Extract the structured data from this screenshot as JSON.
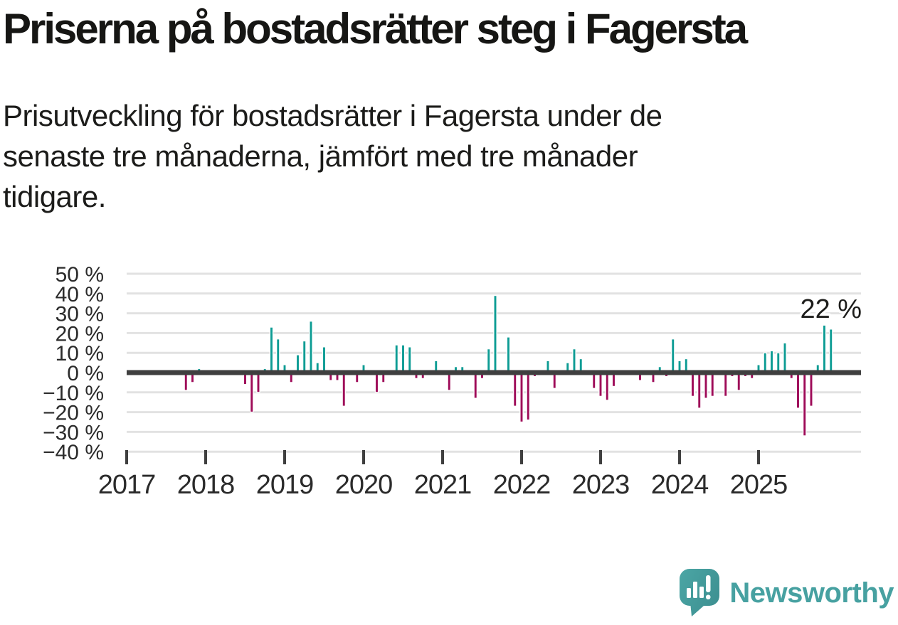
{
  "header": {
    "title": "Priserna på bostadsrätter steg i Fagersta",
    "subtitle_lines": [
      "Prisutveckling för bostadsrätter i Fagersta under de",
      "senaste tre månaderna, jämfört med tre månader",
      "tidigare."
    ]
  },
  "footer": {
    "brand": "Newsworthy",
    "logo_icon": "speech-bubble-with-bar-chart-and-exclamation"
  },
  "chart_data": {
    "type": "bar",
    "title": "",
    "xlabel": "",
    "ylabel": "",
    "unit": "%",
    "grid": true,
    "ylim": [
      -40,
      50
    ],
    "ytick_step": 10,
    "ytick_labels": [
      "50 %",
      "40 %",
      "30 %",
      "20 %",
      "10 %",
      "0 %",
      "−10 %",
      "−20 %",
      "−30 %",
      "−40 %"
    ],
    "year_labels": [
      "2017",
      "2018",
      "2019",
      "2020",
      "2021",
      "2022",
      "2023",
      "2024",
      "2025"
    ],
    "annotation": {
      "text": "22 %",
      "month": "2025-12"
    },
    "colors": {
      "positive": "#0d9c94",
      "negative": "#9e0b58",
      "zero_line": "#3f3f3f",
      "grid": "#e2e2e2",
      "text": "#2b2b2b",
      "annotation_text": "#1d1d1b",
      "brand_teal": "#47a1a1"
    },
    "months": [
      "2017-10",
      "2017-11",
      "2017-12",
      "2018-01",
      "2018-02",
      "2018-03",
      "2018-04",
      "2018-05",
      "2018-06",
      "2018-07",
      "2018-08",
      "2018-09",
      "2018-10",
      "2018-11",
      "2018-12",
      "2019-01",
      "2019-02",
      "2019-03",
      "2019-04",
      "2019-05",
      "2019-06",
      "2019-07",
      "2019-08",
      "2019-09",
      "2019-10",
      "2019-11",
      "2019-12",
      "2020-01",
      "2020-02",
      "2020-03",
      "2020-04",
      "2020-05",
      "2020-06",
      "2020-07",
      "2020-08",
      "2020-09",
      "2020-10",
      "2020-11",
      "2020-12",
      "2021-01",
      "2021-02",
      "2021-03",
      "2021-04",
      "2021-05",
      "2021-06",
      "2021-07",
      "2021-08",
      "2021-09",
      "2021-10",
      "2021-11",
      "2021-12",
      "2022-01",
      "2022-02",
      "2022-03",
      "2022-04",
      "2022-05",
      "2022-06",
      "2022-07",
      "2022-08",
      "2022-09",
      "2022-10",
      "2022-11",
      "2022-12",
      "2023-01",
      "2023-02",
      "2023-03",
      "2023-04",
      "2023-05",
      "2023-06",
      "2023-07",
      "2023-08",
      "2023-09",
      "2023-10",
      "2023-11",
      "2023-12",
      "2024-01",
      "2024-02",
      "2024-03",
      "2024-04",
      "2024-05",
      "2024-06",
      "2024-07",
      "2024-08",
      "2024-09",
      "2024-10",
      "2024-11",
      "2024-12",
      "2025-01",
      "2025-02",
      "2025-03",
      "2025-04",
      "2025-05",
      "2025-06",
      "2025-07",
      "2025-08",
      "2025-09",
      "2025-10",
      "2025-11",
      "2025-12"
    ],
    "values": [
      -9,
      -5,
      2,
      0,
      0,
      0,
      0,
      0,
      0,
      -6,
      -20,
      -10,
      2,
      23,
      17,
      4,
      -5,
      9,
      16,
      26,
      5,
      13,
      -4,
      -4,
      -17,
      -1,
      -5,
      4,
      0,
      -10,
      -5,
      0,
      14,
      14,
      13,
      -3,
      -3,
      1,
      6,
      -1,
      -9,
      3,
      3,
      1,
      -13,
      -3,
      12,
      39,
      0,
      18,
      -17,
      -25,
      -24,
      -2,
      0,
      6,
      -8,
      -1,
      5,
      12,
      7,
      1,
      -8,
      -12,
      -14,
      -7,
      1,
      1,
      -1,
      -4,
      1,
      -5,
      3,
      -2,
      17,
      6,
      7,
      -12,
      -18,
      -13,
      -12,
      1,
      -12,
      -2,
      -9,
      -2,
      -3,
      4,
      10,
      11,
      10,
      15,
      -3,
      -18,
      -32,
      -17,
      4,
      24,
      22
    ]
  }
}
